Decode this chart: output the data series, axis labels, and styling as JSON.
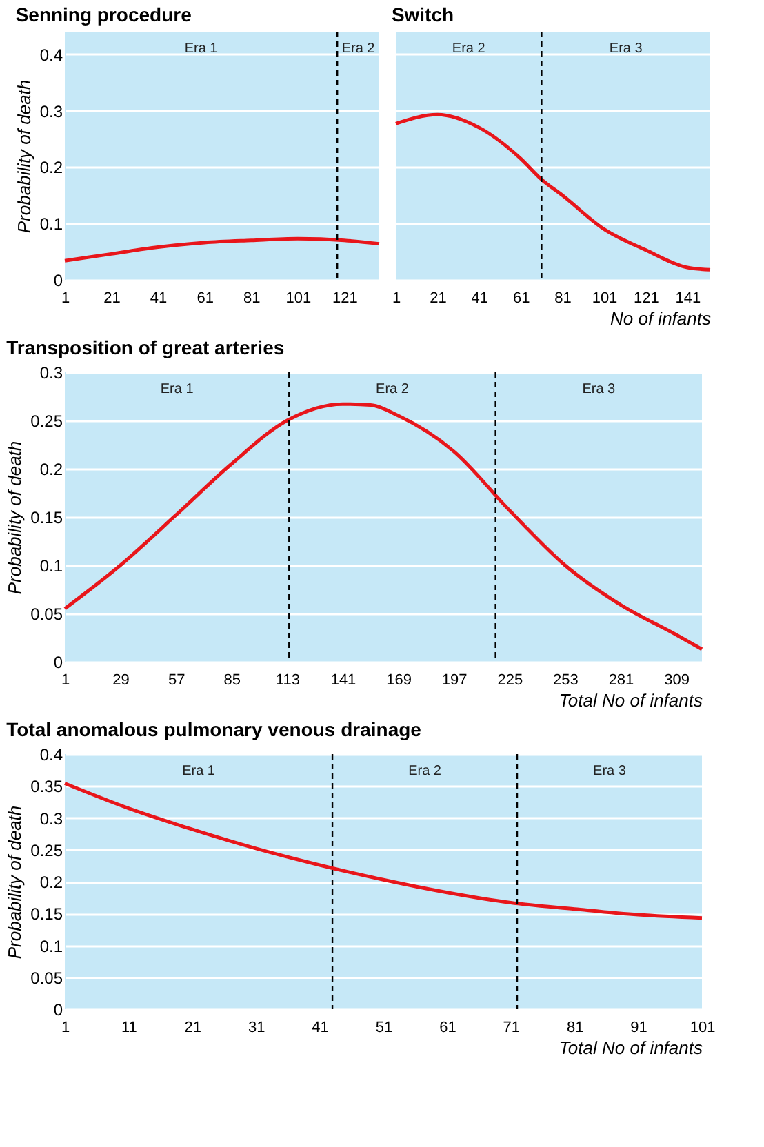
{
  "chart_data": [
    {
      "type": "line",
      "title": "Senning procedure",
      "ylabel": "Probability of death",
      "tick_labels": true,
      "grid": "y",
      "x": [
        1,
        21,
        41,
        61,
        81,
        101,
        121,
        136
      ],
      "series": [
        {
          "color": "#e8161b",
          "values": [
            0.034,
            0.046,
            0.058,
            0.066,
            0.07,
            0.073,
            0.07,
            0.064
          ]
        }
      ],
      "xlim": [
        1,
        136
      ],
      "xticks": [
        1,
        21,
        41,
        61,
        81,
        101,
        121
      ],
      "ylim": [
        0,
        0.44
      ],
      "yticks": [
        0,
        0.1,
        0.2,
        0.3,
        0.4
      ],
      "ref_lines": [
        {
          "axis": "x",
          "value": 118,
          "color": "#000000",
          "line_style": "dashed"
        }
      ],
      "annotations": [
        "Era 1",
        "Era 2"
      ]
    },
    {
      "type": "line",
      "title": "Switch",
      "xlabel": "No of infants",
      "tick_labels": "x",
      "grid": "y",
      "x": [
        1,
        21,
        41,
        61,
        71,
        81,
        101,
        121,
        141,
        152
      ],
      "series": [
        {
          "color": "#e8161b",
          "values": [
            0.277,
            0.293,
            0.27,
            0.215,
            0.178,
            0.15,
            0.09,
            0.053,
            0.022,
            0.018
          ]
        }
      ],
      "xlim": [
        1,
        152
      ],
      "xticks": [
        1,
        21,
        41,
        61,
        81,
        101,
        121,
        141
      ],
      "ylim": [
        0,
        0.44
      ],
      "yticks": [
        0,
        0.1,
        0.2,
        0.3,
        0.4
      ],
      "ref_lines": [
        {
          "axis": "x",
          "value": 71,
          "color": "#000000",
          "line_style": "dashed"
        }
      ],
      "annotations": [
        "Era 2",
        "Era 3"
      ]
    },
    {
      "type": "line",
      "title": "Transposition of great arteries",
      "xlabel": "Total No of infants",
      "ylabel": "Probability of death",
      "grid": "y",
      "x": [
        1,
        29,
        57,
        85,
        113,
        141,
        155,
        169,
        197,
        225,
        253,
        281,
        309,
        322
      ],
      "series": [
        {
          "color": "#e8161b",
          "values": [
            0.055,
            0.1,
            0.152,
            0.205,
            0.25,
            0.267,
            0.266,
            0.255,
            0.218,
            0.157,
            0.1,
            0.059,
            0.028,
            0.013
          ]
        }
      ],
      "xlim": [
        1,
        322
      ],
      "xticks": [
        1,
        29,
        57,
        85,
        113,
        141,
        169,
        197,
        225,
        253,
        281,
        309
      ],
      "ylim": [
        0,
        0.3
      ],
      "yticks": [
        0,
        0.05,
        0.1,
        0.15,
        0.2,
        0.25,
        0.3
      ],
      "ref_lines": [
        {
          "axis": "x",
          "value": 114,
          "color": "#000000",
          "line_style": "dashed"
        },
        {
          "axis": "x",
          "value": 218,
          "color": "#000000",
          "line_style": "dashed"
        }
      ],
      "annotations": [
        "Era 1",
        "Era 2",
        "Era 3"
      ]
    },
    {
      "type": "line",
      "title": "Total anomalous pulmonary venous drainage",
      "xlabel": "Total No of infants",
      "ylabel": "Probability of death",
      "grid": "y",
      "x": [
        1,
        11,
        21,
        31,
        41,
        51,
        61,
        71,
        81,
        91,
        101
      ],
      "series": [
        {
          "color": "#e8161b",
          "values": [
            0.354,
            0.315,
            0.282,
            0.252,
            0.226,
            0.203,
            0.183,
            0.167,
            0.157,
            0.148,
            0.143
          ]
        }
      ],
      "xlim": [
        1,
        101
      ],
      "xticks": [
        1,
        11,
        21,
        31,
        41,
        51,
        61,
        71,
        81,
        91,
        101
      ],
      "ylim": [
        0,
        0.4
      ],
      "yticks": [
        0,
        0.05,
        0.1,
        0.15,
        0.2,
        0.25,
        0.3,
        0.35,
        0.4
      ],
      "ref_lines": [
        {
          "axis": "x",
          "value": 43,
          "color": "#000000",
          "line_style": "dashed"
        },
        {
          "axis": "x",
          "value": 72,
          "color": "#000000",
          "line_style": "dashed"
        }
      ],
      "annotations": [
        "Era 1",
        "Era 2",
        "Era 3"
      ]
    }
  ]
}
